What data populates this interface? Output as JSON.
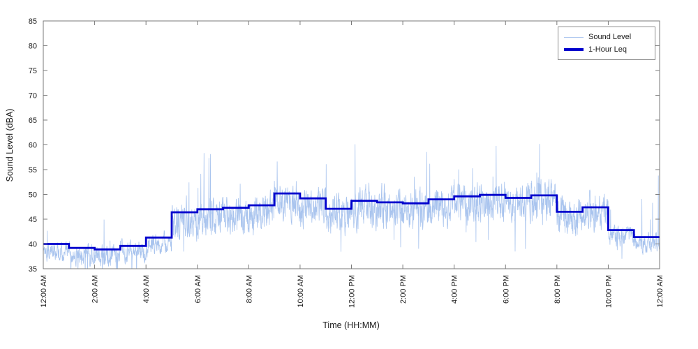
{
  "chart_data": {
    "type": "line",
    "title": "",
    "xlabel": "Time (HH:MM)",
    "ylabel": "Sound Level (dBA)",
    "xlim_hours": [
      0,
      24
    ],
    "ylim": [
      35,
      85
    ],
    "y_ticks": [
      35,
      40,
      45,
      50,
      55,
      60,
      65,
      70,
      75,
      80,
      85
    ],
    "x_tick_hours": [
      0,
      2,
      4,
      6,
      8,
      10,
      12,
      14,
      16,
      18,
      20,
      22,
      24
    ],
    "x_tick_labels": [
      "12:00 AM",
      "2:00 AM",
      "4:00 AM",
      "6:00 AM",
      "8:00 AM",
      "10:00 AM",
      "12:00 PM",
      "2:00 PM",
      "4:00 PM",
      "6:00 PM",
      "8:00 PM",
      "10:00 PM",
      "12:00 AM"
    ],
    "grid": false,
    "legend_position": "top-right",
    "axis_color": "#7a7a7a",
    "text_color": "#1a1a1a",
    "background": "#ffffff",
    "series": [
      {
        "name": "Sound Level",
        "type": "noisy-trace",
        "color": "#a9c4ee",
        "line_width": 0.8,
        "generator": {
          "seed": 1337,
          "points_per_hour": 120,
          "offset_below_leq": 1.2,
          "night_spread": 2.0,
          "day_spread": 3.8,
          "night_threshold": 43,
          "spike_prob": 0.012,
          "spike_min": 4,
          "spike_extra": 9,
          "dip_prob": 0.01,
          "dip_min": 2,
          "dip_extra": 5,
          "persistence": 0.5
        }
      },
      {
        "name": "1-Hour Leq",
        "type": "step",
        "color": "#0000cd",
        "line_width": 2.8,
        "hourly_values": [
          40.0,
          39.2,
          38.9,
          39.6,
          41.3,
          46.4,
          47.0,
          47.3,
          47.8,
          50.2,
          49.2,
          47.1,
          48.7,
          48.4,
          48.2,
          49.0,
          49.6,
          49.9,
          49.3,
          49.8,
          46.5,
          47.4,
          42.8,
          41.4
        ]
      }
    ]
  },
  "legend": {
    "items": [
      {
        "label": "Sound Level"
      },
      {
        "label": "1-Hour Leq"
      }
    ]
  }
}
